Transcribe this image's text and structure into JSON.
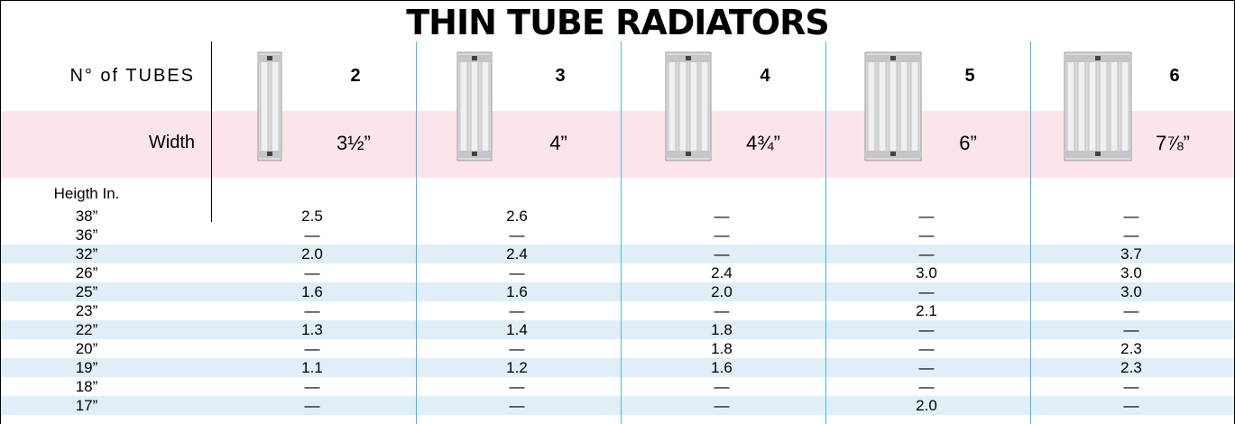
{
  "title": "THIN TUBE RADIATORS",
  "tubes": {
    "label": "N° of TUBES",
    "values": [
      2,
      3,
      4,
      5,
      6
    ]
  },
  "width": {
    "label": "Width",
    "values": [
      "3½”",
      "4”",
      "4¾”",
      "6”",
      "7⅞”"
    ]
  },
  "height_label": "Heigth In.",
  "rows": [
    [
      "38”",
      "2.5",
      "2.6",
      "—",
      "—",
      "—"
    ],
    [
      "36”",
      "—",
      "—",
      "—",
      "—",
      "—"
    ],
    [
      "32”",
      "2.0",
      "2.4",
      "—",
      "—",
      "3.7"
    ],
    [
      "26”",
      "—",
      "—",
      "2.4",
      "3.0",
      "3.0"
    ],
    [
      "25”",
      "1.6",
      "1.6",
      "2.0",
      "—",
      "3.0"
    ],
    [
      "23”",
      "—",
      "—",
      "—",
      "2.1",
      "—"
    ],
    [
      "22”",
      "1.3",
      "1.4",
      "1.8",
      "—",
      "—"
    ],
    [
      "20”",
      "—",
      "—",
      "1.8",
      "—",
      "2.3"
    ],
    [
      "19”",
      "1.1",
      "1.2",
      "1.6",
      "—",
      "2.3"
    ],
    [
      "18”",
      "—",
      "—",
      "—",
      "—",
      "—"
    ],
    [
      "17”",
      "—",
      "—",
      "—",
      "2.0",
      "—"
    ]
  ]
}
